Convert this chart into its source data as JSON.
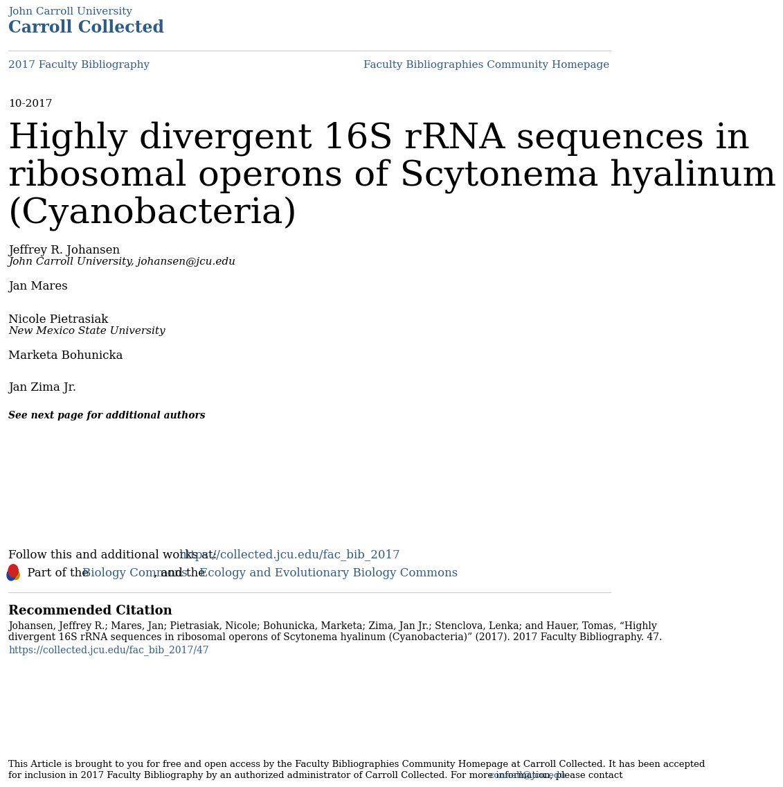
{
  "bg_color": "#ffffff",
  "header_color": "#2e5c8a",
  "link_color": "#2e5c8a",
  "text_color": "#000000",
  "line_color": "#cccccc",
  "institution_line1": "John Carroll University",
  "institution_line2": "Carroll Collected",
  "nav_left": "2017 Faculty Bibliography",
  "nav_right": "Faculty Bibliographies Community Homepage",
  "date": "10-2017",
  "title_line1": "Highly divergent 16S rRNA sequences in",
  "title_line2": "ribosomal operons of Scytonema hyalinum",
  "title_line3": "(Cyanobacteria)",
  "author1_name": "Jeffrey R. Johansen",
  "author1_affil": "John Carroll University, johansen@jcu.edu",
  "author2_name": "Jan Mares",
  "author3_name": "Nicole Pietrasiak",
  "author3_affil": "New Mexico State University",
  "author4_name": "Marketa Bohunicka",
  "author5_name": "Jan Zima Jr.",
  "see_next": "See next page for additional authors",
  "follow_text": "Follow this and additional works at: ",
  "follow_url": "https://collected.jcu.edu/fac_bib_2017",
  "part_text1": " Part of the ",
  "part_link1": "Biology Commons",
  "part_text2": ", and the ",
  "part_link2": "Ecology and Evolutionary Biology Commons",
  "rec_citation_title": "Recommended Citation",
  "rec_citation_body1": "Johansen, Jeffrey R.; Mares, Jan; Pietrasiak, Nicole; Bohunicka, Marketa; Zima, Jan Jr.; Stenclova, Lenka; and Hauer, Tomas, “Highly",
  "rec_citation_body2": "divergent 16S rRNA sequences in ribosomal operons of Scytonema hyalinum (Cyanobacteria)” (2017). 2017 Faculty Bibliography. 47.",
  "rec_citation_url": "https://collected.jcu.edu/fac_bib_2017/47",
  "footer_line1": "This Article is brought to you for free and open access by the Faculty Bibliographies Community Homepage at Carroll Collected. It has been accepted",
  "footer_line2": "for inclusion in 2017 Faculty Bibliography by an authorized administrator of Carroll Collected. For more information, please contact ",
  "footer_link": "connell@jcu.edu",
  "footer_end": "."
}
